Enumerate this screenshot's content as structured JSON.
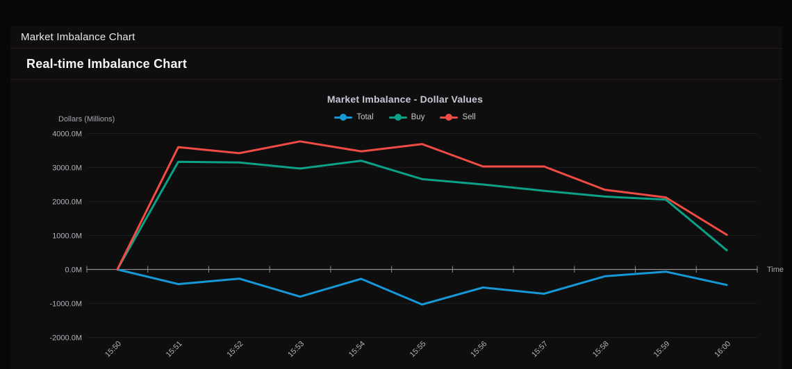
{
  "window": {
    "title": "Market Imbalance Chart"
  },
  "section": {
    "heading": "Real-time Imbalance Chart"
  },
  "chart_data": {
    "type": "line",
    "title": "Market Imbalance - Dollar Values",
    "xlabel": "Time",
    "ylabel": "Dollars (Millions)",
    "x": [
      "15:50",
      "15:51",
      "15:52",
      "15:53",
      "15:54",
      "15:55",
      "15:56",
      "15:57",
      "15:58",
      "15:59",
      "16:00"
    ],
    "series": [
      {
        "name": "Total",
        "color": "#1697d6",
        "values": [
          0,
          -430,
          -270,
          -800,
          -275,
          -1030,
          -530,
          -715,
          -200,
          -65,
          -455
        ]
      },
      {
        "name": "Buy",
        "color": "#0aa186",
        "values": [
          0,
          3170,
          3150,
          2970,
          3200,
          2660,
          2500,
          2315,
          2145,
          2055,
          565
        ]
      },
      {
        "name": "Sell",
        "color": "#f14c43",
        "values": [
          0,
          3600,
          3420,
          3770,
          3475,
          3690,
          3030,
          3030,
          2345,
          2120,
          1020
        ]
      }
    ],
    "ylim": [
      -2000,
      4000
    ],
    "y_tick_step": 1000,
    "y_tick_labels": [
      "4000.0M",
      "3000.0M",
      "2000.0M",
      "1000.0M",
      "0.0M",
      "-1000.0M",
      "-2000.0M"
    ],
    "legend": [
      "Total",
      "Buy",
      "Sell"
    ],
    "legend_position": "top",
    "grid": true
  },
  "theme": {
    "page_bg": "#070708",
    "panel_bg": "#0e0e0f",
    "divider": "#2a1517",
    "grid_color": "#1e1e22",
    "axis_color": "#8e8e96",
    "tick_label_color": "#b3b3bb",
    "axis_title_color": "#a6a6ae",
    "chart_title_color": "#c9c9d5",
    "legend_text_color": "#c9c9cc",
    "header_text_color": "#e9e9ea",
    "heading_text_color": "#f4f4f5"
  }
}
